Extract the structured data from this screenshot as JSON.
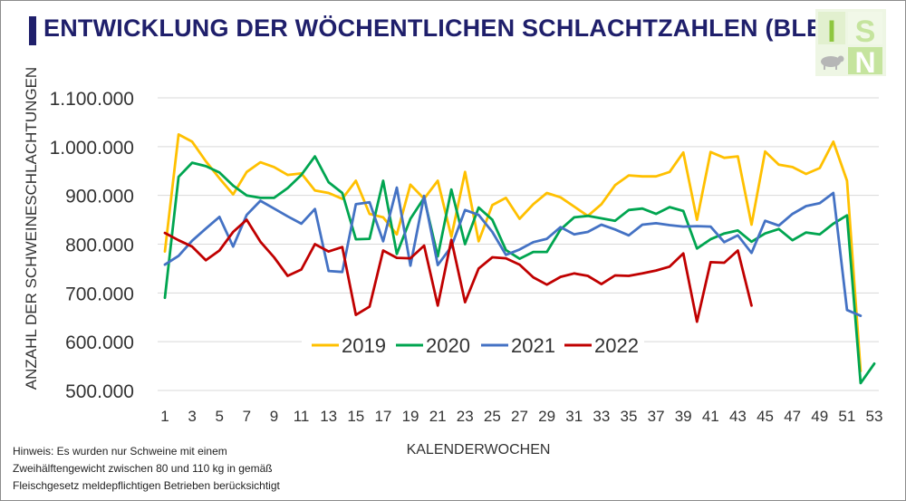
{
  "title": "ENTWICKLUNG DER WÖCHENTLICHEN SCHLACHTZAHLEN (BLE)",
  "logo": {
    "letters": [
      "I",
      "S",
      "N"
    ],
    "colors": [
      "#8ec63f",
      "#c5e49e",
      "#e2f0cf"
    ],
    "icon": "pig-icon"
  },
  "note_lines": [
    "Hinweis: Es wurden nur Schweine mit einem",
    "Zweihälftengewicht zwischen 80 und 110 kg  in gemäß",
    "Fleischgesetz meldepflichtigen Betrieben berücksichtigt"
  ],
  "chart_data": {
    "type": "line",
    "xlabel": "KALENDERWOCHEN",
    "ylabel": "ANZAHL DER SCHWEINESCHLACHTUNGEN",
    "xlim": [
      1,
      53
    ],
    "ylim": [
      500000,
      1100000
    ],
    "x_ticks": [
      1,
      3,
      5,
      7,
      9,
      11,
      13,
      15,
      17,
      19,
      21,
      23,
      25,
      27,
      29,
      31,
      33,
      35,
      37,
      39,
      41,
      43,
      45,
      47,
      49,
      51,
      53
    ],
    "y_ticks": [
      {
        "value": 500000,
        "label": "500.000"
      },
      {
        "value": 600000,
        "label": "600.000"
      },
      {
        "value": 700000,
        "label": "700.000"
      },
      {
        "value": 800000,
        "label": "800.000"
      },
      {
        "value": 900000,
        "label": "900.000"
      },
      {
        "value": 1000000,
        "label": "1.000.000"
      },
      {
        "value": 1100000,
        "label": "1.100.000"
      }
    ],
    "grid": true,
    "legend": "bottom-left",
    "series": [
      {
        "name": "2019",
        "color": "#ffc000",
        "values": [
          785000,
          1025000,
          1010000,
          970000,
          935000,
          902000,
          948000,
          968000,
          958000,
          942000,
          945000,
          910000,
          905000,
          893000,
          930000,
          862000,
          855000,
          820000,
          922000,
          893000,
          930000,
          815000,
          948000,
          806000,
          880000,
          895000,
          852000,
          882000,
          905000,
          896000,
          877000,
          858000,
          882000,
          921000,
          941000,
          939000,
          939000,
          948000,
          988000,
          850000,
          989000,
          977000,
          980000,
          840000,
          990000,
          963000,
          958000,
          944000,
          956000,
          1010000,
          930000,
          540000,
          null
        ]
      },
      {
        "name": "2020",
        "color": "#00a550",
        "values": [
          690000,
          938000,
          967000,
          960000,
          947000,
          920000,
          900000,
          895000,
          895000,
          915000,
          942000,
          980000,
          927000,
          905000,
          810000,
          811000,
          930000,
          780000,
          852000,
          895000,
          775000,
          912000,
          800000,
          875000,
          850000,
          788000,
          770000,
          784000,
          784000,
          830000,
          855000,
          858000,
          853000,
          848000,
          870000,
          873000,
          862000,
          876000,
          868000,
          791000,
          810000,
          822000,
          828000,
          805000,
          822000,
          831000,
          808000,
          824000,
          820000,
          842000,
          859000,
          515000,
          555000
        ]
      },
      {
        "name": "2021",
        "color": "#4472c4",
        "values": [
          758000,
          776000,
          807000,
          832000,
          856000,
          795000,
          860000,
          889000,
          873000,
          857000,
          842000,
          872000,
          745000,
          743000,
          882000,
          886000,
          806000,
          916000,
          756000,
          899000,
          757000,
          795000,
          870000,
          860000,
          825000,
          778000,
          789000,
          804000,
          811000,
          835000,
          820000,
          825000,
          840000,
          830000,
          818000,
          840000,
          843000,
          839000,
          836000,
          837000,
          836000,
          804000,
          818000,
          782000,
          848000,
          838000,
          862000,
          878000,
          884000,
          905000,
          665000,
          653000,
          null
        ]
      },
      {
        "name": "2022",
        "color": "#c00000",
        "values": [
          823000,
          808000,
          795000,
          767000,
          787000,
          825000,
          850000,
          805000,
          773000,
          735000,
          748000,
          800000,
          785000,
          794000,
          655000,
          672000,
          787000,
          772000,
          771000,
          797000,
          674000,
          809000,
          681000,
          750000,
          773000,
          771000,
          758000,
          732000,
          717000,
          733000,
          740000,
          735000,
          718000,
          736000,
          735000,
          740000,
          746000,
          754000,
          781000,
          641000,
          763000,
          762000,
          787000,
          674000,
          null,
          null,
          null,
          null,
          null,
          null,
          null,
          null,
          null
        ]
      }
    ]
  }
}
